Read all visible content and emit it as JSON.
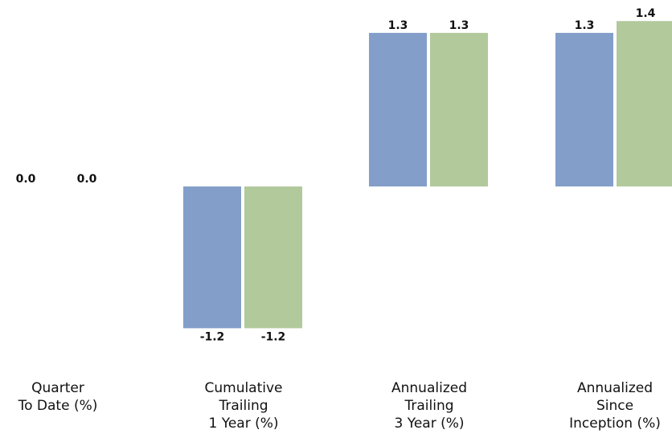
{
  "chart_data": {
    "type": "bar",
    "title": "",
    "xlabel": "",
    "ylabel": "",
    "categories": [
      "Quarter\nTo Date (%)",
      "Cumulative\nTrailing\n1 Year (%)",
      "Annualized\nTrailing\n3 Year (%)",
      "Annualized\nSince\nInception (%)"
    ],
    "series": [
      {
        "color": "#839fc9",
        "values": [
          0.0,
          -1.2,
          1.3,
          1.3
        ]
      },
      {
        "color": "#b2c99c",
        "values": [
          0.0,
          -1.2,
          1.3,
          1.4
        ]
      }
    ],
    "value_labels": [
      [
        "0.0",
        "-1.2",
        "1.3",
        "1.3"
      ],
      [
        "0.0",
        "-1.2",
        "1.3",
        "1.4"
      ]
    ],
    "ylim": [
      -1.4,
      1.5
    ],
    "grid": false,
    "legend": "none"
  }
}
